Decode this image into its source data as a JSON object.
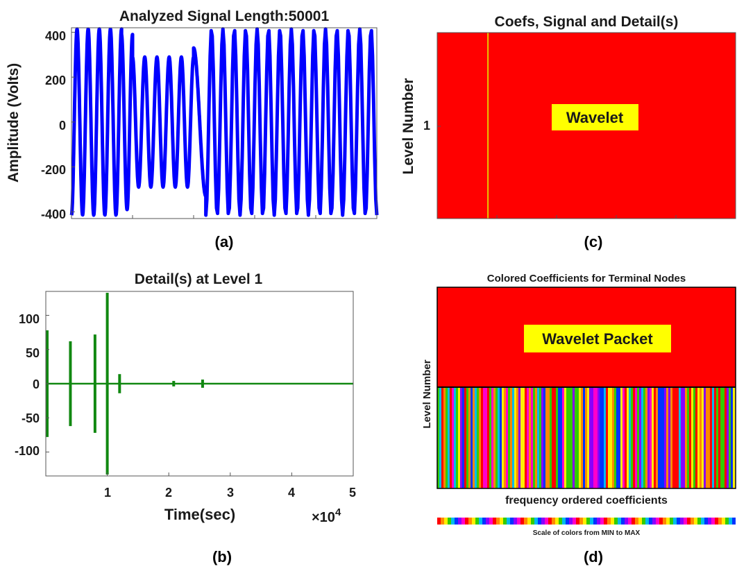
{
  "colors": {
    "signal": "#0000ff",
    "detail": "#118811",
    "coef_bg": "#ff0000",
    "coef_line": "#e6c600",
    "label_bg": "#ffff00",
    "scale_palette": [
      "#ff0000",
      "#ff8800",
      "#ffee00",
      "#33cc00",
      "#00bbee",
      "#0033ff",
      "#8800ff",
      "#ff00cc"
    ]
  },
  "captions": {
    "a": "(a)",
    "b": "(b)",
    "c": "(c)",
    "d": "(d)"
  },
  "panels": {
    "a": {
      "title": "Analyzed Signal Length:50001",
      "ylabel": "Amplitude (Volts)",
      "yticks": [
        "400",
        "200",
        "0",
        "-200",
        "-400"
      ]
    },
    "b": {
      "title": "Detail(s) at Level 1",
      "xlabel": "Time(sec)",
      "xscale": "×10",
      "xscale_exp": "4",
      "yticks": [
        "100",
        "50",
        "0",
        "-50",
        "-100"
      ],
      "xticks": [
        "1",
        "2",
        "3",
        "4",
        "5"
      ]
    },
    "c": {
      "title": "Coefs, Signal and Detail(s)",
      "ylabel": "Level Number",
      "ytick": "1",
      "overlay_label": "Wavelet"
    },
    "d": {
      "title": "Colored Coefficients for Terminal Nodes",
      "ylabel": "Level Number",
      "overlay_label": "Wavelet Packet",
      "bottom_label": "frequency ordered coefficients",
      "scale_label": "Scale of colors from MIN to MAX"
    }
  },
  "chart_data": [
    {
      "type": "line",
      "panel": "a",
      "title": "Analyzed Signal Length:50001",
      "ylabel": "Amplitude (Volts)",
      "xlim": [
        1,
        50001
      ],
      "ylim": [
        -430,
        420
      ],
      "signal_length": 50001,
      "segments": [
        {
          "x_start": 1,
          "x_end": 8200,
          "amplitude": 415,
          "cycles": 4.5
        },
        {
          "x_start": 8200,
          "x_end": 10000,
          "amplitude": 390,
          "cycles": 1
        },
        {
          "x_start": 10000,
          "x_end": 20000,
          "amplitude": 290,
          "cycles": 5
        },
        {
          "x_start": 20000,
          "x_end": 22000,
          "amplitude": 330,
          "cycles": 0.5
        },
        {
          "x_start": 22000,
          "x_end": 50001,
          "amplitude": 415,
          "cycles": 15
        }
      ],
      "grid": false
    },
    {
      "type": "line",
      "panel": "b",
      "title": "Detail(s) at Level 1",
      "xlabel": "Time(sec)",
      "xlim": [
        0,
        50000
      ],
      "ylim": [
        -135,
        135
      ],
      "x_multiplier": 10000,
      "spikes": [
        {
          "x": 0,
          "min": -78,
          "max": 78
        },
        {
          "x": 4000,
          "min": -62,
          "max": 62
        },
        {
          "x": 8000,
          "min": -72,
          "max": 72
        },
        {
          "x": 10000,
          "min": -133,
          "max": 133
        },
        {
          "x": 12000,
          "min": -14,
          "max": 14
        },
        {
          "x": 20800,
          "min": -4,
          "max": 4
        },
        {
          "x": 25500,
          "min": -6,
          "max": 6
        }
      ],
      "noise_amplitude": 1.5,
      "grid": false
    },
    {
      "type": "heatmap",
      "panel": "c",
      "title": "Coefs, Signal and Detail(s)",
      "ylabel": "Level Number",
      "levels": [
        1
      ],
      "highlight_x_fraction": 0.17
    },
    {
      "type": "heatmap",
      "panel": "d",
      "title": "Colored Coefficients for Terminal Nodes",
      "ylabel": "Level Number",
      "xlabel": "frequency ordered coefficients",
      "scale_label": "Scale of colors from MIN to MAX"
    }
  ]
}
